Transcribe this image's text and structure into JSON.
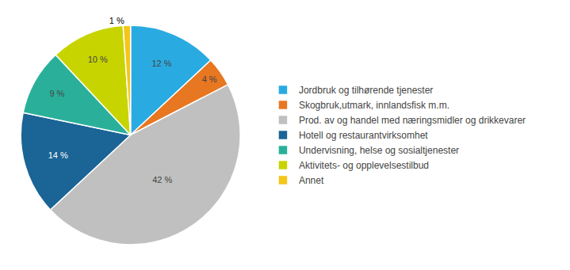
{
  "chart_data": {
    "type": "pie",
    "categories": [
      "Jordbruk og tilhørende tjenester",
      "Skogbruk,utmark, innlandsfisk m.m.",
      "Prod. av og handel med næringsmidler og drikkevarer",
      "Hotell og restaurantvirksomhet",
      "Undervisning, helse og sosialtjenester",
      "Aktivitets- og opplevelsestilbud",
      "Annet"
    ],
    "values": [
      12,
      4,
      42,
      14,
      9,
      10,
      1
    ],
    "value_labels": [
      "12 %",
      "4 %",
      "42 %",
      "14 %",
      "9 %",
      "10 %",
      "1 %"
    ],
    "colors": [
      "#29ABE2",
      "#E87722",
      "#C0C0C0",
      "#1A6496",
      "#2AB09A",
      "#C8D400",
      "#F5C518"
    ],
    "data_labels": true,
    "legend": "right"
  }
}
